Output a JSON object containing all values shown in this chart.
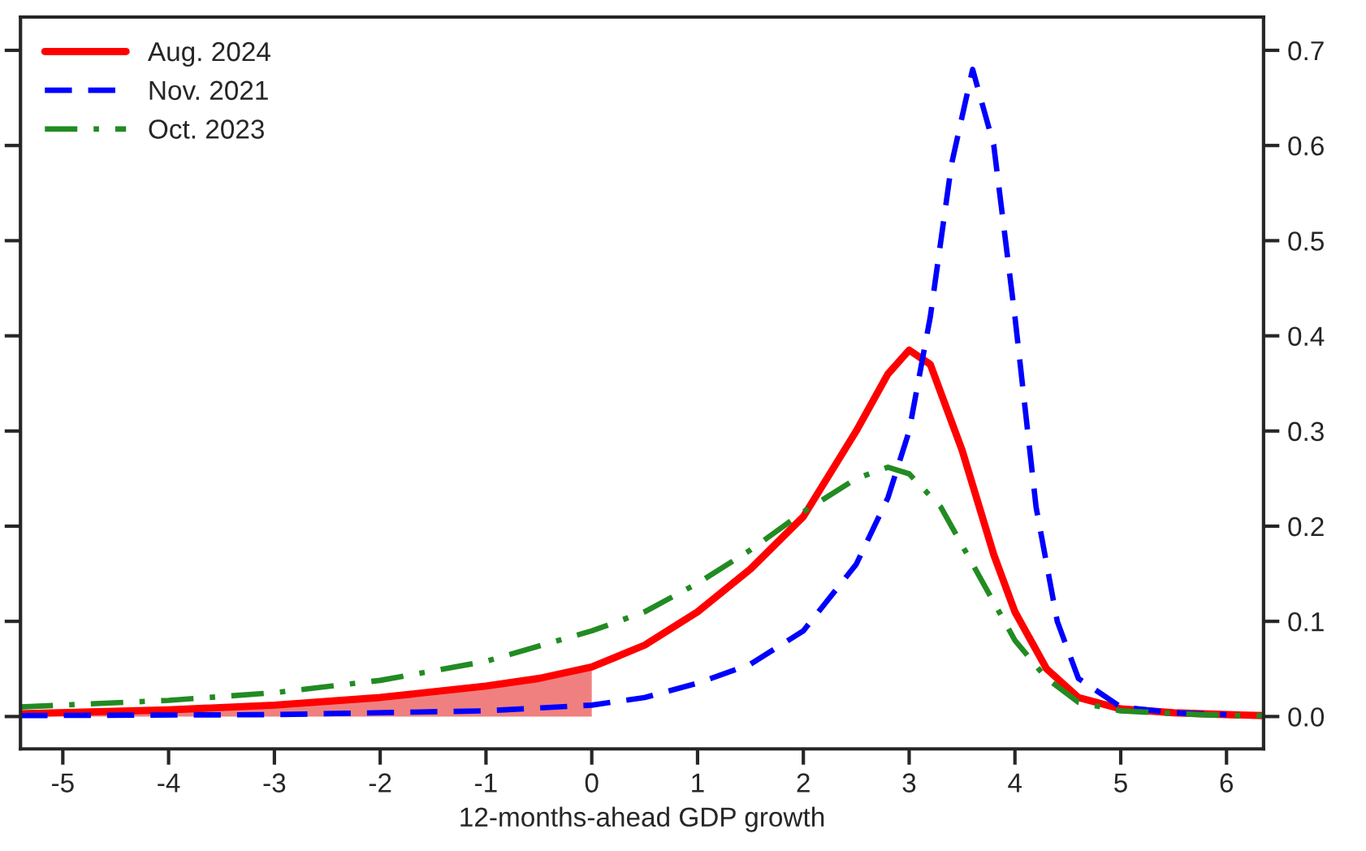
{
  "chart_data": {
    "type": "line",
    "xlabel": "12-months-ahead GDP growth",
    "xlim": [
      -5.4,
      6.35
    ],
    "xticks": [
      -5,
      -4,
      -3,
      -2,
      -1,
      0,
      1,
      2,
      3,
      4,
      5,
      6
    ],
    "ylim": [
      -0.034,
      0.735
    ],
    "yticks": [
      {
        "value": 0,
        "label": "0.0"
      },
      0.1,
      0.2,
      0.3,
      0.4,
      0.5,
      0.6,
      0.7
    ],
    "grid": false,
    "legend": "top left",
    "series": [
      {
        "type": "area",
        "color": "#f08080",
        "x": [
          -5.4,
          -4,
          -3,
          -2,
          -1,
          -0.5,
          0
        ],
        "values": [
          0.003,
          0.007,
          0.012,
          0.02,
          0.032,
          0.04,
          0.052
        ]
      },
      {
        "name": "Aug. 2024",
        "color": "#ff0000",
        "line_style": "solid",
        "x": [
          -5.4,
          -4,
          -3,
          -2,
          -1,
          -0.5,
          0,
          0.5,
          1,
          1.5,
          2,
          2.5,
          2.8,
          3.0,
          3.2,
          3.5,
          3.8,
          4.0,
          4.3,
          4.6,
          5,
          5.5,
          6,
          6.35
        ],
        "values": [
          0.003,
          0.007,
          0.012,
          0.02,
          0.032,
          0.04,
          0.052,
          0.075,
          0.11,
          0.155,
          0.21,
          0.3,
          0.36,
          0.385,
          0.37,
          0.28,
          0.17,
          0.11,
          0.05,
          0.02,
          0.008,
          0.004,
          0.002,
          0.001
        ]
      },
      {
        "name": "Nov. 2021",
        "color": "#0000ff",
        "line_style": "dashed",
        "x": [
          -5.4,
          -3,
          -1,
          0,
          0.5,
          1,
          1.5,
          2,
          2.5,
          2.8,
          3.0,
          3.2,
          3.4,
          3.6,
          3.8,
          4.0,
          4.2,
          4.4,
          4.6,
          5,
          5.5,
          6
        ],
        "values": [
          0.001,
          0.002,
          0.006,
          0.012,
          0.02,
          0.035,
          0.055,
          0.09,
          0.16,
          0.23,
          0.3,
          0.42,
          0.58,
          0.68,
          0.6,
          0.42,
          0.22,
          0.1,
          0.04,
          0.01,
          0.004,
          0.002
        ]
      },
      {
        "name": "Oct. 2023",
        "color": "#228b22",
        "line_style": "dashdot",
        "x": [
          -5.4,
          -4,
          -3,
          -2,
          -1,
          0,
          0.5,
          1,
          1.5,
          2,
          2.5,
          2.8,
          3.0,
          3.3,
          3.6,
          4.0,
          4.3,
          4.6,
          5,
          5.5,
          6,
          6.35
        ],
        "values": [
          0.01,
          0.017,
          0.025,
          0.038,
          0.058,
          0.09,
          0.11,
          0.14,
          0.175,
          0.215,
          0.25,
          0.262,
          0.255,
          0.22,
          0.16,
          0.08,
          0.04,
          0.015,
          0.006,
          0.003,
          0.001,
          0.001
        ]
      }
    ]
  }
}
